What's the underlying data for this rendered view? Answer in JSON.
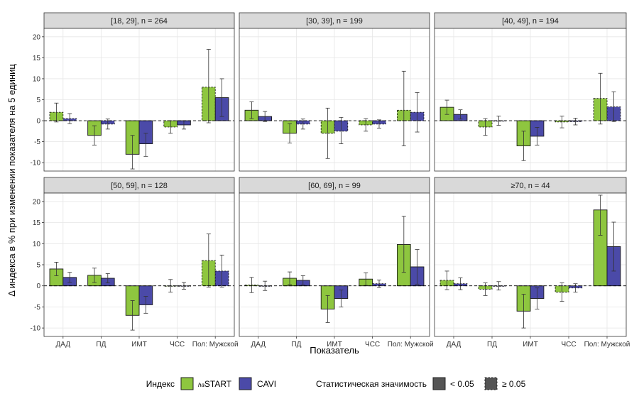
{
  "chart_data": {
    "type": "bar",
    "ylabel": "Δ индекса в % при изменении показателя на 5 единиц",
    "xlabel": "Показатель",
    "categories": [
      "ДАД",
      "ПД",
      "ИМТ",
      "ЧСС",
      "Пол: Мужской"
    ],
    "ylim": [
      -12,
      22
    ],
    "yticks": [
      -10,
      -5,
      0,
      5,
      10,
      15,
      20
    ],
    "grid": true,
    "legend_position": "bottom",
    "colors": {
      "haSTART": "#8ec63f",
      "CAVI": "#4b4aa8"
    },
    "legend": {
      "index_title": "Индекс",
      "index_items": [
        {
          "key": "haSTART",
          "prefix": "ha",
          "label": "START"
        },
        {
          "key": "CAVI",
          "prefix": "",
          "label": "CAVI"
        }
      ],
      "sig_title": "Статистическая значимость",
      "sig_items": [
        {
          "key": "solid",
          "label": "< 0.05"
        },
        {
          "key": "dashed",
          "label": "≥ 0.05"
        }
      ]
    },
    "panels": [
      {
        "title": "[18, 29], n = 264",
        "series": [
          {
            "name": "haSTART",
            "values": [
              2.0,
              -3.5,
              -8.0,
              -1.5,
              8.0
            ],
            "lower": [
              -0.3,
              -5.8,
              -11.5,
              -3.0,
              -0.5
            ],
            "upper": [
              4.2,
              -1.2,
              -3.5,
              0.0,
              17.0
            ],
            "significant": [
              false,
              true,
              true,
              false,
              false
            ]
          },
          {
            "name": "CAVI",
            "values": [
              0.5,
              -0.8,
              -5.5,
              -1.0,
              5.5
            ],
            "lower": [
              -0.7,
              -2.0,
              -8.5,
              -2.0,
              1.0
            ],
            "upper": [
              1.7,
              0.4,
              -3.0,
              0.0,
              10.0
            ],
            "significant": [
              false,
              false,
              true,
              true,
              true
            ]
          }
        ]
      },
      {
        "title": "[30, 39], n = 199",
        "series": [
          {
            "name": "haSTART",
            "values": [
              2.5,
              -3.0,
              -3.0,
              -1.0,
              2.5
            ],
            "lower": [
              0.5,
              -5.3,
              -9.0,
              -2.5,
              -6.0
            ],
            "upper": [
              4.5,
              -0.7,
              3.0,
              0.5,
              11.8
            ],
            "significant": [
              true,
              true,
              false,
              false,
              false
            ]
          },
          {
            "name": "CAVI",
            "values": [
              1.0,
              -0.8,
              -2.5,
              -0.8,
              2.0
            ],
            "lower": [
              -0.2,
              -2.0,
              -5.5,
              -1.8,
              -2.7
            ],
            "upper": [
              2.2,
              0.4,
              0.8,
              0.2,
              6.7
            ],
            "significant": [
              true,
              false,
              false,
              false,
              false
            ]
          }
        ]
      },
      {
        "title": "[40, 49], n = 194",
        "series": [
          {
            "name": "haSTART",
            "values": [
              3.2,
              -1.5,
              -6.0,
              -0.3,
              5.3
            ],
            "lower": [
              1.5,
              -3.5,
              -9.5,
              -1.7,
              -0.8
            ],
            "upper": [
              4.9,
              0.5,
              -2.5,
              1.1,
              11.3
            ],
            "significant": [
              true,
              false,
              true,
              false,
              false
            ]
          },
          {
            "name": "CAVI",
            "values": [
              1.5,
              0.0,
              -3.7,
              -0.2,
              3.3
            ],
            "lower": [
              0.4,
              -1.1,
              -5.8,
              -1.0,
              -0.2
            ],
            "upper": [
              2.6,
              1.1,
              -1.6,
              0.6,
              6.9
            ],
            "significant": [
              true,
              false,
              true,
              false,
              false
            ]
          }
        ]
      },
      {
        "title": "[50, 59], n = 128",
        "series": [
          {
            "name": "haSTART",
            "values": [
              4.0,
              2.5,
              -7.0,
              0.0,
              6.0
            ],
            "lower": [
              2.4,
              0.8,
              -10.5,
              -1.5,
              -0.3
            ],
            "upper": [
              5.6,
              4.2,
              -3.5,
              1.5,
              12.3
            ],
            "significant": [
              true,
              true,
              true,
              false,
              false
            ]
          },
          {
            "name": "CAVI",
            "values": [
              2.0,
              1.8,
              -4.5,
              0.0,
              3.5
            ],
            "lower": [
              0.8,
              0.7,
              -6.5,
              -0.8,
              -0.3
            ],
            "upper": [
              3.2,
              2.9,
              -2.5,
              0.8,
              7.3
            ],
            "significant": [
              true,
              true,
              true,
              false,
              false
            ]
          }
        ]
      },
      {
        "title": "[60, 69], n = 99",
        "series": [
          {
            "name": "haSTART",
            "values": [
              0.2,
              1.8,
              -5.5,
              1.6,
              9.8
            ],
            "lower": [
              -1.6,
              0.3,
              -8.7,
              0.1,
              3.2
            ],
            "upper": [
              2.0,
              3.3,
              -2.3,
              3.1,
              16.5
            ],
            "significant": [
              false,
              true,
              true,
              true,
              true
            ]
          },
          {
            "name": "CAVI",
            "values": [
              0.0,
              1.3,
              -3.0,
              0.5,
              4.5
            ],
            "lower": [
              -1.1,
              0.2,
              -5.0,
              -0.4,
              0.4
            ],
            "upper": [
              1.1,
              2.4,
              -1.0,
              1.4,
              8.6
            ],
            "significant": [
              false,
              true,
              true,
              false,
              true
            ]
          }
        ]
      },
      {
        "title": "≥70, n = 44",
        "series": [
          {
            "name": "haSTART",
            "values": [
              1.3,
              -0.8,
              -6.0,
              -1.5,
              18.0
            ],
            "lower": [
              -0.9,
              -2.3,
              -10.0,
              -3.7,
              12.0
            ],
            "upper": [
              3.5,
              0.7,
              -2.0,
              0.7,
              21.5
            ],
            "significant": [
              false,
              false,
              true,
              false,
              true
            ]
          },
          {
            "name": "CAVI",
            "values": [
              0.5,
              0.0,
              -3.0,
              -0.5,
              9.3
            ],
            "lower": [
              -0.9,
              -1.0,
              -5.5,
              -1.5,
              3.5
            ],
            "upper": [
              1.9,
              1.0,
              -0.5,
              0.5,
              15.1
            ],
            "significant": [
              false,
              false,
              true,
              false,
              true
            ]
          }
        ]
      }
    ]
  }
}
